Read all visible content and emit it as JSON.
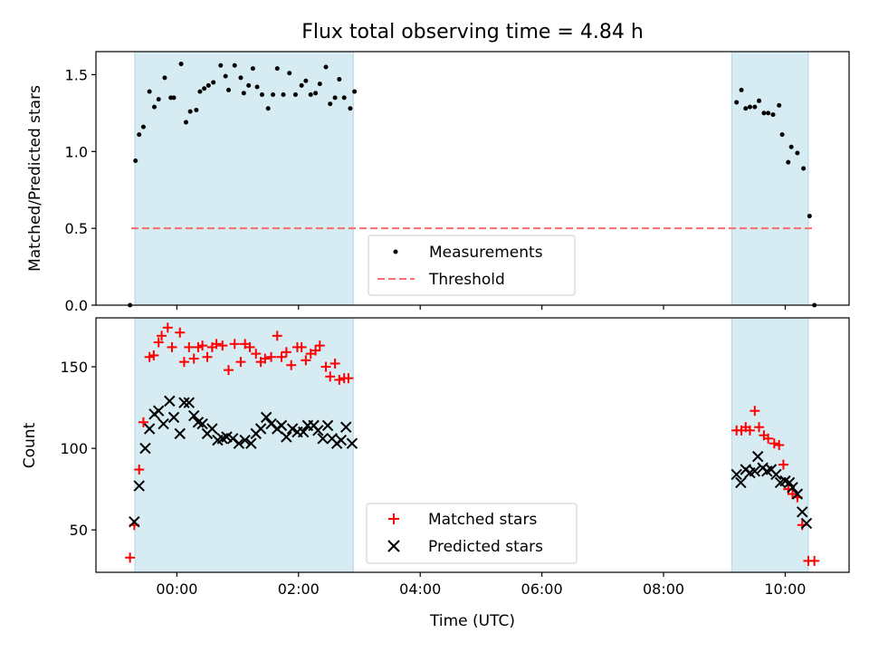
{
  "chart_data": {
    "type": "scatter",
    "title": "Flux total observing time = 4.84 h",
    "xlabel": "Time (UTC)",
    "x_unit": "hours relative to 00:00 UTC",
    "xlim": [
      -1.33,
      11.05
    ],
    "xticks": [
      {
        "value": 0,
        "label": "00:00"
      },
      {
        "value": 2,
        "label": "02:00"
      },
      {
        "value": 4,
        "label": "04:00"
      },
      {
        "value": 6,
        "label": "06:00"
      },
      {
        "value": 8,
        "label": "08:00"
      },
      {
        "value": 10,
        "label": "10:00"
      }
    ],
    "observing_windows": [
      {
        "start": -0.69,
        "end": 2.9
      },
      {
        "start": 9.12,
        "end": 10.38
      }
    ],
    "top_panel": {
      "ylabel": "Matched/Predicted stars",
      "ylim": [
        0,
        1.65
      ],
      "yticks": [
        {
          "value": 0,
          "label": "0.0"
        },
        {
          "value": 0.5,
          "label": "0.5"
        },
        {
          "value": 1.0,
          "label": "1.0"
        },
        {
          "value": 1.5,
          "label": "1.5"
        }
      ],
      "legend": [
        "Measurements",
        "Threshold"
      ],
      "threshold": 0.5,
      "threshold_range": [
        -0.75,
        10.5
      ],
      "measurements": [
        [
          -0.77,
          0.0
        ],
        [
          -0.68,
          0.94
        ],
        [
          -0.62,
          1.11
        ],
        [
          -0.55,
          1.16
        ],
        [
          -0.45,
          1.39
        ],
        [
          -0.37,
          1.29
        ],
        [
          -0.3,
          1.34
        ],
        [
          -0.2,
          1.48
        ],
        [
          -0.1,
          1.35
        ],
        [
          -0.05,
          1.35
        ],
        [
          0.07,
          1.57
        ],
        [
          0.15,
          1.19
        ],
        [
          0.22,
          1.26
        ],
        [
          0.32,
          1.27
        ],
        [
          0.38,
          1.39
        ],
        [
          0.45,
          1.41
        ],
        [
          0.52,
          1.43
        ],
        [
          0.6,
          1.45
        ],
        [
          0.72,
          1.56
        ],
        [
          0.8,
          1.49
        ],
        [
          0.85,
          1.4
        ],
        [
          0.95,
          1.56
        ],
        [
          1.05,
          1.48
        ],
        [
          1.1,
          1.38
        ],
        [
          1.18,
          1.43
        ],
        [
          1.25,
          1.54
        ],
        [
          1.32,
          1.42
        ],
        [
          1.4,
          1.37
        ],
        [
          1.5,
          1.28
        ],
        [
          1.58,
          1.37
        ],
        [
          1.65,
          1.54
        ],
        [
          1.75,
          1.37
        ],
        [
          1.85,
          1.51
        ],
        [
          1.95,
          1.37
        ],
        [
          2.05,
          1.43
        ],
        [
          2.12,
          1.46
        ],
        [
          2.2,
          1.37
        ],
        [
          2.28,
          1.38
        ],
        [
          2.35,
          1.44
        ],
        [
          2.45,
          1.55
        ],
        [
          2.52,
          1.31
        ],
        [
          2.6,
          1.35
        ],
        [
          2.67,
          1.47
        ],
        [
          2.75,
          1.35
        ],
        [
          2.85,
          1.28
        ],
        [
          2.92,
          1.39
        ],
        [
          9.2,
          1.32
        ],
        [
          9.28,
          1.4
        ],
        [
          9.35,
          1.28
        ],
        [
          9.42,
          1.29
        ],
        [
          9.5,
          1.29
        ],
        [
          9.57,
          1.33
        ],
        [
          9.65,
          1.25
        ],
        [
          9.72,
          1.25
        ],
        [
          9.8,
          1.24
        ],
        [
          9.9,
          1.3
        ],
        [
          9.95,
          1.11
        ],
        [
          10.05,
          0.93
        ],
        [
          10.1,
          1.03
        ],
        [
          10.2,
          0.99
        ],
        [
          10.3,
          0.89
        ],
        [
          10.4,
          0.58
        ],
        [
          10.48,
          0.0
        ]
      ]
    },
    "bottom_panel": {
      "ylabel": "Count",
      "ylim": [
        24,
        180
      ],
      "yticks": [
        {
          "value": 50,
          "label": "50"
        },
        {
          "value": 100,
          "label": "100"
        },
        {
          "value": 150,
          "label": "150"
        }
      ],
      "legend": [
        "Matched stars",
        "Predicted stars"
      ],
      "series": [
        {
          "name": "Matched stars",
          "color": "#ff0000",
          "marker": "plus",
          "points": [
            [
              -0.77,
              33
            ],
            [
              -0.7,
              53
            ],
            [
              -0.62,
              87
            ],
            [
              -0.55,
              116
            ],
            [
              -0.45,
              156
            ],
            [
              -0.38,
              157
            ],
            [
              -0.3,
              165
            ],
            [
              -0.25,
              169
            ],
            [
              -0.15,
              174
            ],
            [
              -0.08,
              162
            ],
            [
              0.05,
              171
            ],
            [
              0.12,
              153
            ],
            [
              0.2,
              162
            ],
            [
              0.28,
              155
            ],
            [
              0.35,
              162
            ],
            [
              0.42,
              163
            ],
            [
              0.5,
              156
            ],
            [
              0.58,
              162
            ],
            [
              0.65,
              164
            ],
            [
              0.75,
              163
            ],
            [
              0.85,
              148
            ],
            [
              0.95,
              164
            ],
            [
              1.05,
              153
            ],
            [
              1.12,
              164
            ],
            [
              1.2,
              162
            ],
            [
              1.3,
              158
            ],
            [
              1.38,
              153
            ],
            [
              1.45,
              155
            ],
            [
              1.55,
              156
            ],
            [
              1.65,
              169
            ],
            [
              1.72,
              156
            ],
            [
              1.8,
              159
            ],
            [
              1.88,
              151
            ],
            [
              1.98,
              162
            ],
            [
              2.05,
              162
            ],
            [
              2.12,
              154
            ],
            [
              2.2,
              158
            ],
            [
              2.28,
              160
            ],
            [
              2.35,
              163
            ],
            [
              2.45,
              150
            ],
            [
              2.52,
              144
            ],
            [
              2.6,
              152
            ],
            [
              2.67,
              142
            ],
            [
              2.75,
              143
            ],
            [
              2.82,
              143
            ],
            [
              9.2,
              111
            ],
            [
              9.28,
              111
            ],
            [
              9.35,
              113
            ],
            [
              9.42,
              111
            ],
            [
              9.5,
              123
            ],
            [
              9.57,
              113
            ],
            [
              9.65,
              108
            ],
            [
              9.72,
              106
            ],
            [
              9.82,
              103
            ],
            [
              9.9,
              102
            ],
            [
              9.97,
              90
            ],
            [
              10.05,
              75
            ],
            [
              10.12,
              72
            ],
            [
              10.2,
              70
            ],
            [
              10.28,
              53
            ],
            [
              10.38,
              31
            ],
            [
              10.48,
              31
            ]
          ]
        },
        {
          "name": "Predicted stars",
          "color": "#000000",
          "marker": "x",
          "points": [
            [
              -0.7,
              55
            ],
            [
              -0.62,
              77
            ],
            [
              -0.52,
              100
            ],
            [
              -0.45,
              112
            ],
            [
              -0.37,
              121
            ],
            [
              -0.3,
              123
            ],
            [
              -0.22,
              115
            ],
            [
              -0.12,
              129
            ],
            [
              -0.05,
              119
            ],
            [
              0.05,
              109
            ],
            [
              0.12,
              128
            ],
            [
              0.2,
              128
            ],
            [
              0.28,
              120
            ],
            [
              0.35,
              116
            ],
            [
              0.42,
              115
            ],
            [
              0.5,
              109
            ],
            [
              0.58,
              112
            ],
            [
              0.67,
              105
            ],
            [
              0.75,
              106
            ],
            [
              0.82,
              107
            ],
            [
              0.92,
              106
            ],
            [
              1.02,
              103
            ],
            [
              1.12,
              105
            ],
            [
              1.22,
              103
            ],
            [
              1.3,
              109
            ],
            [
              1.38,
              112
            ],
            [
              1.47,
              119
            ],
            [
              1.55,
              115
            ],
            [
              1.65,
              112
            ],
            [
              1.72,
              114
            ],
            [
              1.8,
              107
            ],
            [
              1.9,
              112
            ],
            [
              1.98,
              110
            ],
            [
              2.08,
              110
            ],
            [
              2.15,
              114
            ],
            [
              2.25,
              114
            ],
            [
              2.32,
              111
            ],
            [
              2.4,
              106
            ],
            [
              2.48,
              114
            ],
            [
              2.55,
              106
            ],
            [
              2.63,
              103
            ],
            [
              2.7,
              105
            ],
            [
              2.78,
              113
            ],
            [
              2.88,
              103
            ],
            [
              9.2,
              84
            ],
            [
              9.27,
              79
            ],
            [
              9.35,
              87
            ],
            [
              9.42,
              85
            ],
            [
              9.5,
              86
            ],
            [
              9.55,
              95
            ],
            [
              9.63,
              88
            ],
            [
              9.7,
              86
            ],
            [
              9.77,
              87
            ],
            [
              9.85,
              84
            ],
            [
              9.92,
              79
            ],
            [
              10.0,
              80
            ],
            [
              10.07,
              79
            ],
            [
              10.12,
              76
            ],
            [
              10.2,
              72
            ],
            [
              10.28,
              61
            ],
            [
              10.35,
              54
            ]
          ]
        }
      ]
    }
  }
}
